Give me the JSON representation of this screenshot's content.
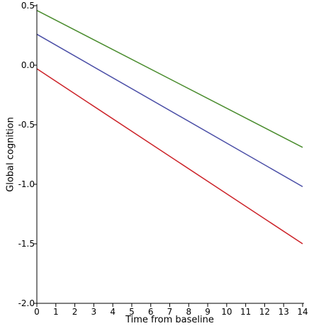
{
  "chart_data": {
    "type": "line",
    "title": "",
    "xlabel": "Time from baseline",
    "ylabel": "Global cognition",
    "xlim": [
      0,
      14
    ],
    "ylim": [
      -2.0,
      0.5
    ],
    "xticks": [
      0,
      1,
      2,
      3,
      4,
      5,
      6,
      7,
      8,
      9,
      10,
      11,
      12,
      13,
      14
    ],
    "xtick_labels": [
      "0",
      "1",
      "2",
      "3",
      "4",
      "5",
      "6",
      "7",
      "8",
      "9",
      "10",
      "11",
      "12",
      "13",
      "14"
    ],
    "yticks": [
      0.5,
      0.0,
      -0.5,
      -1.0,
      -1.5,
      -2.0
    ],
    "ytick_labels": [
      "0.5",
      "0.0",
      "-0.5",
      "-1.0",
      "-1.5",
      "-2.0"
    ],
    "grid": false,
    "legend": "none",
    "series": [
      {
        "color": "#4a8c2e",
        "x": [
          0,
          14
        ],
        "values": [
          0.46,
          -0.69
        ]
      },
      {
        "color": "#4a4ea6",
        "x": [
          0,
          14
        ],
        "values": [
          0.26,
          -1.02
        ]
      },
      {
        "color": "#cc2228",
        "x": [
          0,
          14
        ],
        "values": [
          -0.03,
          -1.5
        ]
      }
    ]
  }
}
